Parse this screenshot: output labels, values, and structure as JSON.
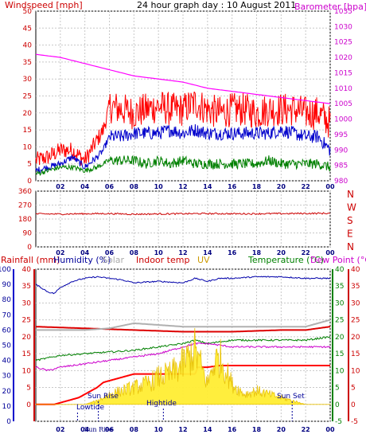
{
  "chart_data": [
    {
      "type": "line",
      "title": "24 hour graph day : 10 August 2011",
      "left_label": "Windspeed [mph]",
      "right_label": "Barometer [hpa]",
      "x_ticks": [
        "02",
        "04",
        "06",
        "08",
        "10",
        "12",
        "14",
        "16",
        "18",
        "20",
        "22",
        "00"
      ],
      "y_left_ticks": [
        0,
        5,
        10,
        15,
        20,
        25,
        30,
        35,
        40,
        45,
        50
      ],
      "y_left_range": [
        0,
        50
      ],
      "y_right_ticks": [
        980,
        985,
        990,
        995,
        1000,
        1005,
        1010,
        1015,
        1020,
        1025,
        1030,
        1035
      ],
      "y_right_range": [
        980,
        1035
      ],
      "x_range_hours": [
        0,
        24
      ],
      "series": [
        {
          "color": "#ff0000",
          "axis": "left",
          "x": [
            0,
            1,
            2,
            3,
            4,
            5,
            5.5,
            6,
            7,
            8,
            9,
            10,
            11,
            12,
            13,
            14,
            15,
            16,
            17,
            18,
            19,
            20,
            21,
            22,
            23,
            24
          ],
          "y": [
            6,
            7,
            9,
            9,
            6,
            12,
            15,
            22,
            21,
            20,
            21,
            22,
            21,
            21,
            23,
            21,
            20,
            21,
            21,
            20,
            21,
            21,
            21,
            20,
            20,
            17
          ]
        },
        {
          "color": "#0000cc",
          "axis": "left",
          "x": [
            0,
            1,
            2,
            3,
            4,
            5,
            5.5,
            6,
            7,
            8,
            9,
            10,
            11,
            12,
            13,
            14,
            15,
            16,
            17,
            18,
            19,
            20,
            21,
            22,
            23,
            24
          ],
          "y": [
            3,
            4,
            5,
            7,
            4,
            7,
            9,
            13,
            13,
            14,
            14,
            14,
            15,
            14,
            15,
            14,
            14,
            14,
            14,
            14,
            14,
            15,
            14,
            13,
            13,
            9
          ]
        },
        {
          "color": "#008000",
          "axis": "left",
          "x": [
            0,
            1,
            2,
            3,
            4,
            5,
            5.5,
            6,
            7,
            8,
            9,
            10,
            11,
            12,
            13,
            14,
            15,
            16,
            17,
            18,
            19,
            20,
            21,
            22,
            23,
            24
          ],
          "y": [
            2,
            3,
            4,
            4,
            3,
            4,
            5,
            6,
            6,
            6,
            5,
            6,
            5,
            6,
            5,
            5,
            5,
            5,
            5,
            5,
            6,
            5,
            5,
            5,
            5,
            4
          ]
        },
        {
          "color": "#ff00ff",
          "axis": "right",
          "x": [
            0,
            2,
            4,
            6,
            8,
            10,
            12,
            14,
            16,
            18,
            20,
            22,
            24
          ],
          "y": [
            1021,
            1020,
            1018,
            1016,
            1014,
            1013,
            1012,
            1010,
            1009,
            1008,
            1007,
            1006,
            1005
          ]
        }
      ]
    },
    {
      "type": "line",
      "direction_labels": [
        "N",
        "W",
        "S",
        "E",
        "N"
      ],
      "y_ticks": [
        0,
        90,
        180,
        270,
        360
      ],
      "y_range": [
        0,
        360
      ],
      "x_ticks": [
        "02",
        "04",
        "06",
        "08",
        "10",
        "12",
        "14",
        "16",
        "18",
        "20",
        "22",
        "00"
      ],
      "series": [
        {
          "color": "#cc0000",
          "x": [
            0,
            2,
            4,
            6,
            8,
            10,
            12,
            14,
            16,
            18,
            20,
            22,
            24
          ],
          "y": [
            213,
            212,
            214,
            215,
            211,
            213,
            214,
            215,
            214,
            214,
            215,
            216,
            217
          ]
        }
      ]
    },
    {
      "type": "line",
      "legend": [
        "Rainfall (mm)",
        "Humidity (%)",
        "Solar",
        "Indoor temp",
        "UV",
        "Temperature (°C)",
        "Dew Point (°C)"
      ],
      "annotations": [
        "Sun Rise",
        "Lowtide",
        "Hightide",
        "Sun Set"
      ],
      "x_ticks": [
        "02",
        "04",
        "Sun Rise",
        "06",
        "08",
        "10",
        "12",
        "14",
        "16",
        "18",
        "20",
        "22",
        "00"
      ],
      "axis_rain_ticks": [
        0,
        5,
        10,
        15,
        20,
        25,
        30,
        35,
        40
      ],
      "axis_humidity_ticks": [
        0,
        10,
        20,
        30,
        40,
        50,
        60,
        70,
        80,
        90,
        100
      ],
      "axis_uv_ticks": [
        0,
        5,
        10,
        15,
        20,
        25,
        30,
        35,
        40
      ],
      "axis_temp_ticks": [
        -5,
        0,
        5,
        10,
        15,
        20,
        25,
        30,
        35,
        40
      ],
      "axis_dewpoint_ticks": [
        -5,
        0,
        5,
        10,
        15,
        20,
        25,
        30,
        35,
        40
      ],
      "temp_range": [
        -5,
        40
      ],
      "series": [
        {
          "name": "Humidity (%)",
          "color": "#0000aa",
          "scale": "humidity",
          "x": [
            0,
            1,
            1.5,
            2,
            3,
            4,
            5,
            6,
            7,
            8,
            10,
            12,
            13,
            14,
            15,
            16,
            18,
            20,
            22,
            24
          ],
          "y": [
            90,
            85,
            84,
            88,
            92,
            94,
            95,
            94,
            93,
            91,
            92,
            91,
            94,
            92,
            94,
            94,
            95,
            95,
            94,
            94
          ]
        },
        {
          "name": "Indoor temp",
          "color": "#dd0000",
          "scale": "temp",
          "x": [
            0,
            4,
            8,
            12,
            16,
            20,
            22,
            24
          ],
          "y": [
            23,
            22.5,
            22,
            21.5,
            21.5,
            22,
            22,
            23
          ]
        },
        {
          "name": "Solar",
          "color": "#b0b0b0",
          "scale": "temp",
          "x": [
            0,
            4,
            6,
            8,
            12,
            16,
            20,
            22,
            24
          ],
          "y": [
            22,
            22,
            22.5,
            24,
            23,
            23,
            23,
            23,
            25
          ]
        },
        {
          "name": "Temperature (°C)",
          "color": "#008000",
          "scale": "temp",
          "x": [
            0,
            2,
            4,
            6,
            8,
            10,
            12,
            13,
            14,
            16,
            18,
            20,
            22,
            24
          ],
          "y": [
            13,
            14.5,
            15,
            15.5,
            16,
            17,
            18,
            19,
            18,
            19,
            19,
            19,
            19,
            20
          ]
        },
        {
          "name": "Dew Point (°C)",
          "color": "#cc00cc",
          "scale": "temp",
          "x": [
            0,
            1,
            2,
            4,
            6,
            8,
            10,
            12,
            13,
            14,
            16,
            18,
            20,
            22,
            24
          ],
          "y": [
            11,
            10,
            11,
            12,
            13,
            14,
            15,
            17,
            18,
            18,
            17,
            17,
            17,
            17,
            17
          ]
        },
        {
          "name": "Rainfall (mm)",
          "color": "#ff0000",
          "scale": "rain",
          "x": [
            0,
            1.5,
            2.5,
            3.5,
            4,
            5,
            5.5,
            6,
            7,
            8,
            10,
            12,
            13,
            13.2,
            14,
            15,
            16,
            18,
            20,
            21,
            21.3,
            22,
            24
          ],
          "y": [
            0,
            0,
            1,
            2,
            3,
            5,
            6.5,
            7,
            8,
            9,
            9,
            9,
            9,
            11,
            11,
            11.5,
            11.5,
            11.5,
            11.5,
            11.5,
            11.5,
            11.5,
            11.5
          ]
        },
        {
          "name": "UV",
          "color": "#e8c000",
          "scale": "uv",
          "x": [
            0,
            4,
            5,
            6,
            7,
            8,
            9,
            10,
            11,
            12,
            12.5,
            13,
            13.5,
            14,
            14.5,
            15,
            16,
            17,
            18,
            19,
            20,
            21,
            22,
            24
          ],
          "y": [
            0,
            0,
            1,
            3,
            4,
            5,
            6,
            8,
            9,
            12,
            14,
            16,
            11,
            6,
            12,
            14,
            6,
            3,
            4,
            3,
            2,
            1,
            0,
            0
          ]
        }
      ]
    }
  ]
}
